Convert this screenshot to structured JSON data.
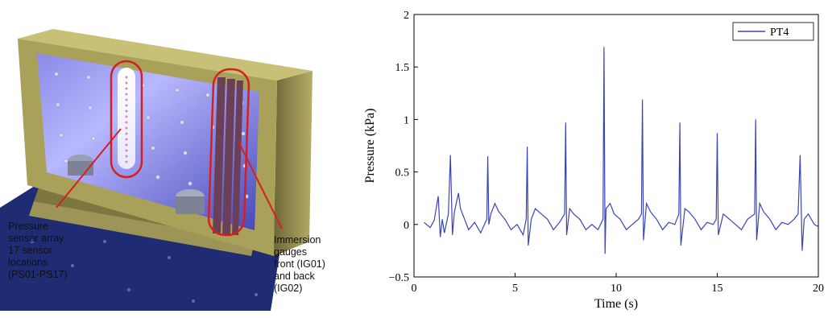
{
  "illustration": {
    "annotations": {
      "pressure": [
        "Pressure",
        "sensor array",
        "17 sensor",
        "locations",
        "(PS01-PS17)"
      ],
      "immersion": [
        "Immersion",
        "gauges",
        "front (IG01)",
        "and back",
        "(IG02)"
      ]
    },
    "colors": {
      "frame": "#a9a05a",
      "panel": "#6f6fd8",
      "base": "#223077",
      "highlight": "#d42020"
    }
  },
  "chart_data": {
    "type": "line",
    "xlabel": "Time (s)",
    "ylabel": "Pressure (kPa)",
    "xlim": [
      0,
      20
    ],
    "ylim": [
      -0.5,
      2
    ],
    "x_ticks": [
      "0",
      "5",
      "10",
      "15",
      "20"
    ],
    "y_ticks": [
      "−0.5",
      "0",
      "0.5",
      "1",
      "1.5",
      "2"
    ],
    "legend_position": "top-right",
    "grid": false,
    "series": [
      {
        "name": "PT4",
        "color": "#3a44b4",
        "x": [
          0.5,
          0.8,
          1.0,
          1.2,
          1.3,
          1.4,
          1.5,
          1.7,
          1.8,
          1.85,
          1.9,
          2.0,
          2.2,
          2.3,
          2.5,
          2.7,
          3.0,
          3.3,
          3.6,
          3.65,
          3.7,
          3.8,
          4.0,
          4.2,
          4.5,
          4.8,
          5.1,
          5.4,
          5.55,
          5.6,
          5.65,
          5.8,
          6.0,
          6.3,
          6.6,
          6.9,
          7.2,
          7.45,
          7.5,
          7.55,
          7.7,
          7.9,
          8.2,
          8.5,
          8.8,
          9.1,
          9.35,
          9.4,
          9.45,
          9.5,
          9.7,
          9.9,
          10.2,
          10.5,
          10.8,
          11.1,
          11.25,
          11.3,
          11.35,
          11.5,
          11.7,
          12.0,
          12.3,
          12.6,
          12.9,
          13.1,
          13.15,
          13.2,
          13.4,
          13.6,
          13.9,
          14.2,
          14.5,
          14.8,
          14.95,
          15.0,
          15.05,
          15.3,
          15.6,
          15.9,
          16.2,
          16.5,
          16.85,
          16.9,
          16.95,
          17.1,
          17.3,
          17.6,
          17.9,
          18.2,
          18.5,
          18.8,
          19.0,
          19.1,
          19.2,
          19.3,
          19.5,
          19.8,
          20.0
        ],
        "y": [
          0.02,
          -0.03,
          0.04,
          0.27,
          -0.12,
          0.05,
          -0.08,
          0.1,
          0.66,
          0.3,
          -0.1,
          0.12,
          0.3,
          0.15,
          0.05,
          -0.05,
          0.02,
          -0.08,
          0.05,
          0.65,
          0.0,
          0.1,
          0.2,
          0.12,
          0.05,
          -0.05,
          0.0,
          -0.1,
          0.05,
          0.74,
          -0.2,
          0.05,
          0.15,
          0.1,
          0.05,
          -0.05,
          0.02,
          0.1,
          0.97,
          -0.1,
          0.15,
          0.1,
          0.05,
          -0.05,
          0.0,
          -0.05,
          0.05,
          1.69,
          -0.28,
          0.15,
          0.2,
          0.1,
          0.05,
          -0.05,
          0.0,
          0.05,
          0.1,
          1.19,
          -0.15,
          0.2,
          0.12,
          0.05,
          -0.05,
          0.02,
          0.0,
          0.1,
          0.97,
          -0.2,
          0.15,
          0.12,
          0.05,
          -0.05,
          0.02,
          0.0,
          0.05,
          0.87,
          -0.1,
          0.1,
          0.05,
          0.0,
          -0.05,
          0.05,
          0.1,
          1.0,
          -0.15,
          0.2,
          0.12,
          0.05,
          -0.05,
          0.02,
          0.0,
          0.05,
          0.1,
          0.66,
          -0.25,
          0.05,
          0.1,
          0.0,
          -0.02
        ]
      }
    ]
  }
}
